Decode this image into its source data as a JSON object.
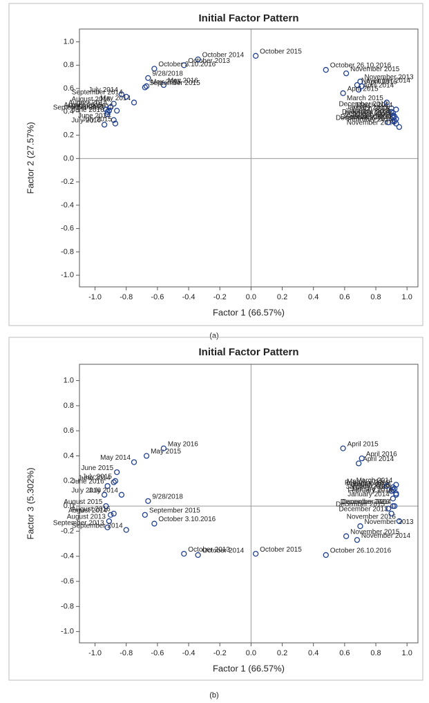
{
  "chart_data": [
    {
      "type": "scatter",
      "title": "Initial Factor Pattern",
      "x_label": "Factor 1 (66.57%)",
      "y_label": "Factor 2 (27.57%)",
      "caption": "(a)",
      "color": "#1f3f8f",
      "xlim": [
        -1.1,
        1.07
      ],
      "ylim": [
        -1.1,
        1.11
      ],
      "xticks": [
        {
          "value": -1,
          "label": "-1.0"
        },
        -0.8,
        -0.6,
        -0.4,
        -0.2,
        {
          "value": 0,
          "label": "0.0"
        },
        0.2,
        0.4,
        0.6,
        0.8,
        {
          "value": 1,
          "label": "1.0"
        }
      ],
      "yticks": [
        {
          "value": -1,
          "label": "-1.0"
        },
        -0.8,
        -0.6,
        -0.4,
        -0.2,
        {
          "value": 0,
          "label": "0.0"
        },
        0.2,
        0.4,
        0.6,
        0.8,
        {
          "value": 1,
          "label": "1.0"
        }
      ],
      "labels": [
        "October 2013",
        "October 2014",
        "October 2015",
        "October 26.10.2016",
        "October 3.10.2016",
        "9/28/2018",
        "November 2013",
        "November 2014",
        "November 2015",
        "November 2016",
        "December 2013",
        "December 2014",
        "December 2015",
        "December 2016",
        "January 2014",
        "January 2015",
        "January 2016",
        "February 2014",
        "February 2015",
        "February 2016",
        "March 2014",
        "March 2015",
        "March 2016",
        "April 2014",
        "April 2015",
        "April 2016",
        "May 2014",
        "May 2015",
        "May 2016",
        "June 2014",
        "June 2015",
        "June 2016",
        "July 2014",
        "July 2015",
        "July 2016",
        "August 2013",
        "August 2014",
        "August 2015",
        "August 2016",
        "September 2013",
        "September 2014",
        "September 2015"
      ],
      "x": [
        -0.43,
        -0.34,
        0.03,
        0.48,
        -0.62,
        -0.66,
        0.7,
        0.68,
        0.61,
        0.95,
        0.9,
        0.92,
        0.88,
        0.91,
        0.91,
        0.9,
        0.93,
        0.92,
        0.91,
        0.93,
        0.93,
        0.87,
        0.91,
        0.69,
        0.59,
        0.71,
        -0.75,
        -0.67,
        -0.56,
        -0.88,
        -0.86,
        -0.92,
        -0.83,
        -0.87,
        -0.94,
        -0.91,
        -0.9,
        -0.93,
        -0.88,
        -0.92,
        -0.8,
        -0.68
      ],
      "y": [
        0.8,
        0.85,
        0.88,
        0.76,
        0.77,
        0.69,
        0.66,
        0.63,
        0.73,
        0.27,
        0.43,
        0.36,
        0.31,
        0.32,
        0.37,
        0.4,
        0.34,
        0.32,
        0.35,
        0.3,
        0.42,
        0.48,
        0.39,
        0.59,
        0.56,
        0.62,
        0.48,
        0.62,
        0.63,
        0.33,
        0.41,
        0.38,
        0.55,
        0.3,
        0.29,
        0.41,
        0.44,
        0.42,
        0.47,
        0.4,
        0.53,
        0.61
      ]
    },
    {
      "type": "scatter",
      "title": "Initial Factor Pattern",
      "x_label": "Factor 1 (66.57%)",
      "y_label": "Factor 3 (5.302%)",
      "caption": "(b)",
      "color": "#1f3f8f",
      "xlim": [
        -1.1,
        1.07
      ],
      "ylim": [
        -1.09,
        1.13
      ],
      "xticks": [
        {
          "value": -1,
          "label": "-1.0"
        },
        -0.8,
        -0.6,
        -0.4,
        -0.2,
        {
          "value": 0,
          "label": "0.0"
        },
        0.2,
        0.4,
        0.6,
        0.8,
        {
          "value": 1,
          "label": "1.0"
        }
      ],
      "yticks": [
        {
          "value": -1,
          "label": "-1.0"
        },
        -0.8,
        -0.6,
        -0.4,
        -0.2,
        {
          "value": 0,
          "label": "0.0"
        },
        0.2,
        0.4,
        0.6,
        0.8,
        {
          "value": 1,
          "label": "1.0"
        }
      ],
      "labels": [
        "October 2013",
        "October 2014",
        "October 2015",
        "October 26.10.2016",
        "October 3.10.2016",
        "9/28/2018",
        "November 2013",
        "November 2014",
        "November 2015",
        "November 2016",
        "December 2013",
        "December 2014",
        "December 2015",
        "December 2016",
        "January 2014",
        "January 2015",
        "January 2016",
        "February 2014",
        "February 2015",
        "February 2016",
        "March 2014",
        "March 2015",
        "March 2016",
        "April 2014",
        "April 2015",
        "April 2016",
        "May 2014",
        "May 2015",
        "May 2016",
        "June 2014",
        "June 2015",
        "June 2016",
        "July 2014",
        "July 2015",
        "July 2016",
        "August 2013",
        "August 2014",
        "August 2015",
        "August 2016",
        "September 2013",
        "September 2014",
        "September 2015"
      ],
      "x": [
        -0.43,
        -0.34,
        0.03,
        0.48,
        -0.62,
        -0.66,
        0.7,
        0.68,
        0.61,
        0.95,
        0.9,
        0.92,
        0.88,
        0.91,
        0.91,
        0.9,
        0.93,
        0.92,
        0.91,
        0.93,
        0.93,
        0.87,
        0.91,
        0.69,
        0.59,
        0.71,
        -0.75,
        -0.67,
        -0.56,
        -0.88,
        -0.86,
        -0.92,
        -0.83,
        -0.87,
        -0.94,
        -0.91,
        -0.9,
        -0.93,
        -0.88,
        -0.92,
        -0.8,
        -0.68
      ],
      "y": [
        -0.38,
        -0.39,
        -0.38,
        -0.39,
        -0.14,
        0.04,
        -0.16,
        -0.27,
        -0.24,
        -0.12,
        -0.06,
        0.0,
        -0.02,
        0.0,
        0.06,
        0.12,
        0.1,
        0.14,
        0.15,
        0.09,
        0.17,
        0.16,
        0.13,
        0.34,
        0.46,
        0.38,
        0.35,
        0.4,
        0.46,
        0.19,
        0.27,
        0.16,
        0.09,
        0.2,
        0.09,
        -0.12,
        -0.07,
        0.0,
        -0.06,
        -0.17,
        -0.19,
        -0.07
      ]
    }
  ]
}
